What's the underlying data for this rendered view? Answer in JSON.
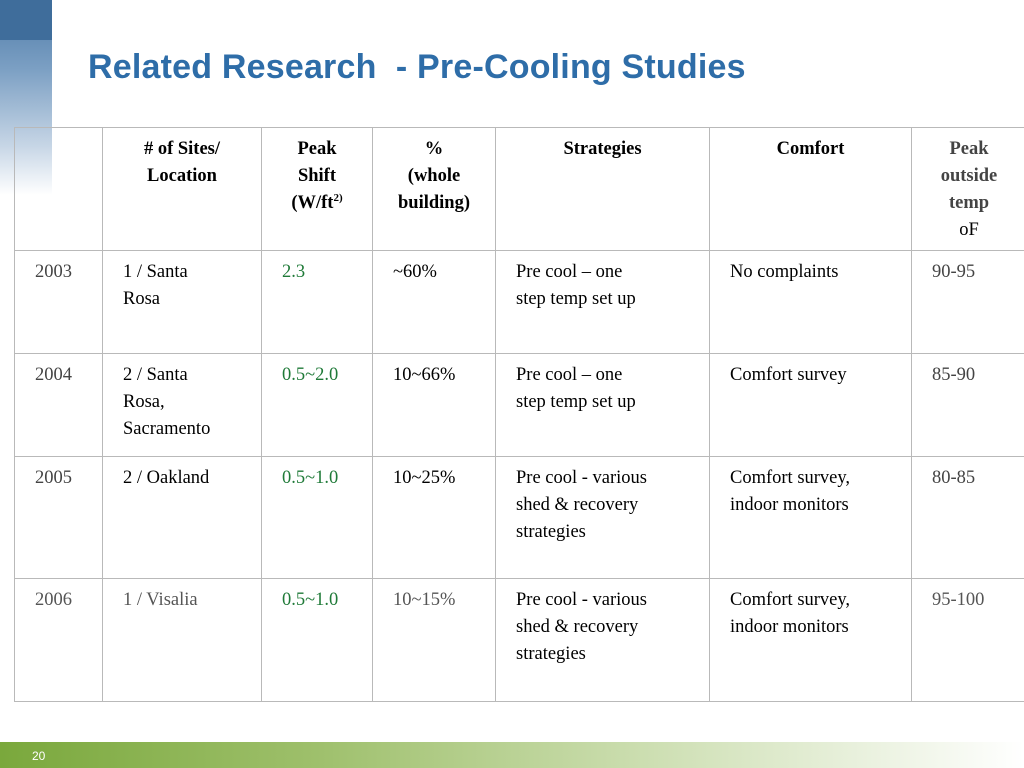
{
  "slide": {
    "title": "Related Research  - Pre-Cooling Studies",
    "page_number": "20"
  },
  "table": {
    "headers": {
      "year": "",
      "sites": "# of Sites/\nLocation",
      "peak_shift": "Peak\nShift\n(W/ft",
      "peak_shift_sup": "2)",
      "percent": "%\n(whole\nbuilding)",
      "strategies": "Strategies",
      "comfort": "Comfort",
      "temp_bold": "Peak\noutside\ntemp",
      "temp_unit": "oF"
    },
    "rows": [
      {
        "year": "2003",
        "sites": "1 / Santa\nRosa",
        "peak_shift": "2.3",
        "percent": "~60%",
        "strategies": "Pre cool – one\nstep temp set up",
        "comfort": "No complaints",
        "temp": "90-95"
      },
      {
        "year": "2004",
        "sites": "2 / Santa\nRosa,\nSacramento",
        "peak_shift": "0.5~2.0",
        "percent": "10~66%",
        "strategies": "Pre cool – one\nstep temp set up",
        "comfort": "Comfort survey",
        "temp": "85-90"
      },
      {
        "year": "2005",
        "sites": "2 / Oakland",
        "peak_shift": "0.5~1.0",
        "percent": "10~25%",
        "strategies": "Pre cool - various\nshed & recovery\nstrategies",
        "comfort": "Comfort survey,\nindoor monitors",
        "temp": "80-85"
      },
      {
        "year": "2006",
        "sites": "1 / Visalia",
        "peak_shift": "0.5~1.0",
        "percent": "10~15%",
        "strategies": "Pre cool - various\nshed & recovery\nstrategies",
        "comfort": "Comfort survey,\nindoor monitors",
        "temp": "95-100"
      }
    ]
  },
  "colors": {
    "title": "#2e6da8",
    "highlight_green": "#1f7a38",
    "footer_green": "#7aa83c",
    "corner_blue": "#3f6d9b"
  }
}
